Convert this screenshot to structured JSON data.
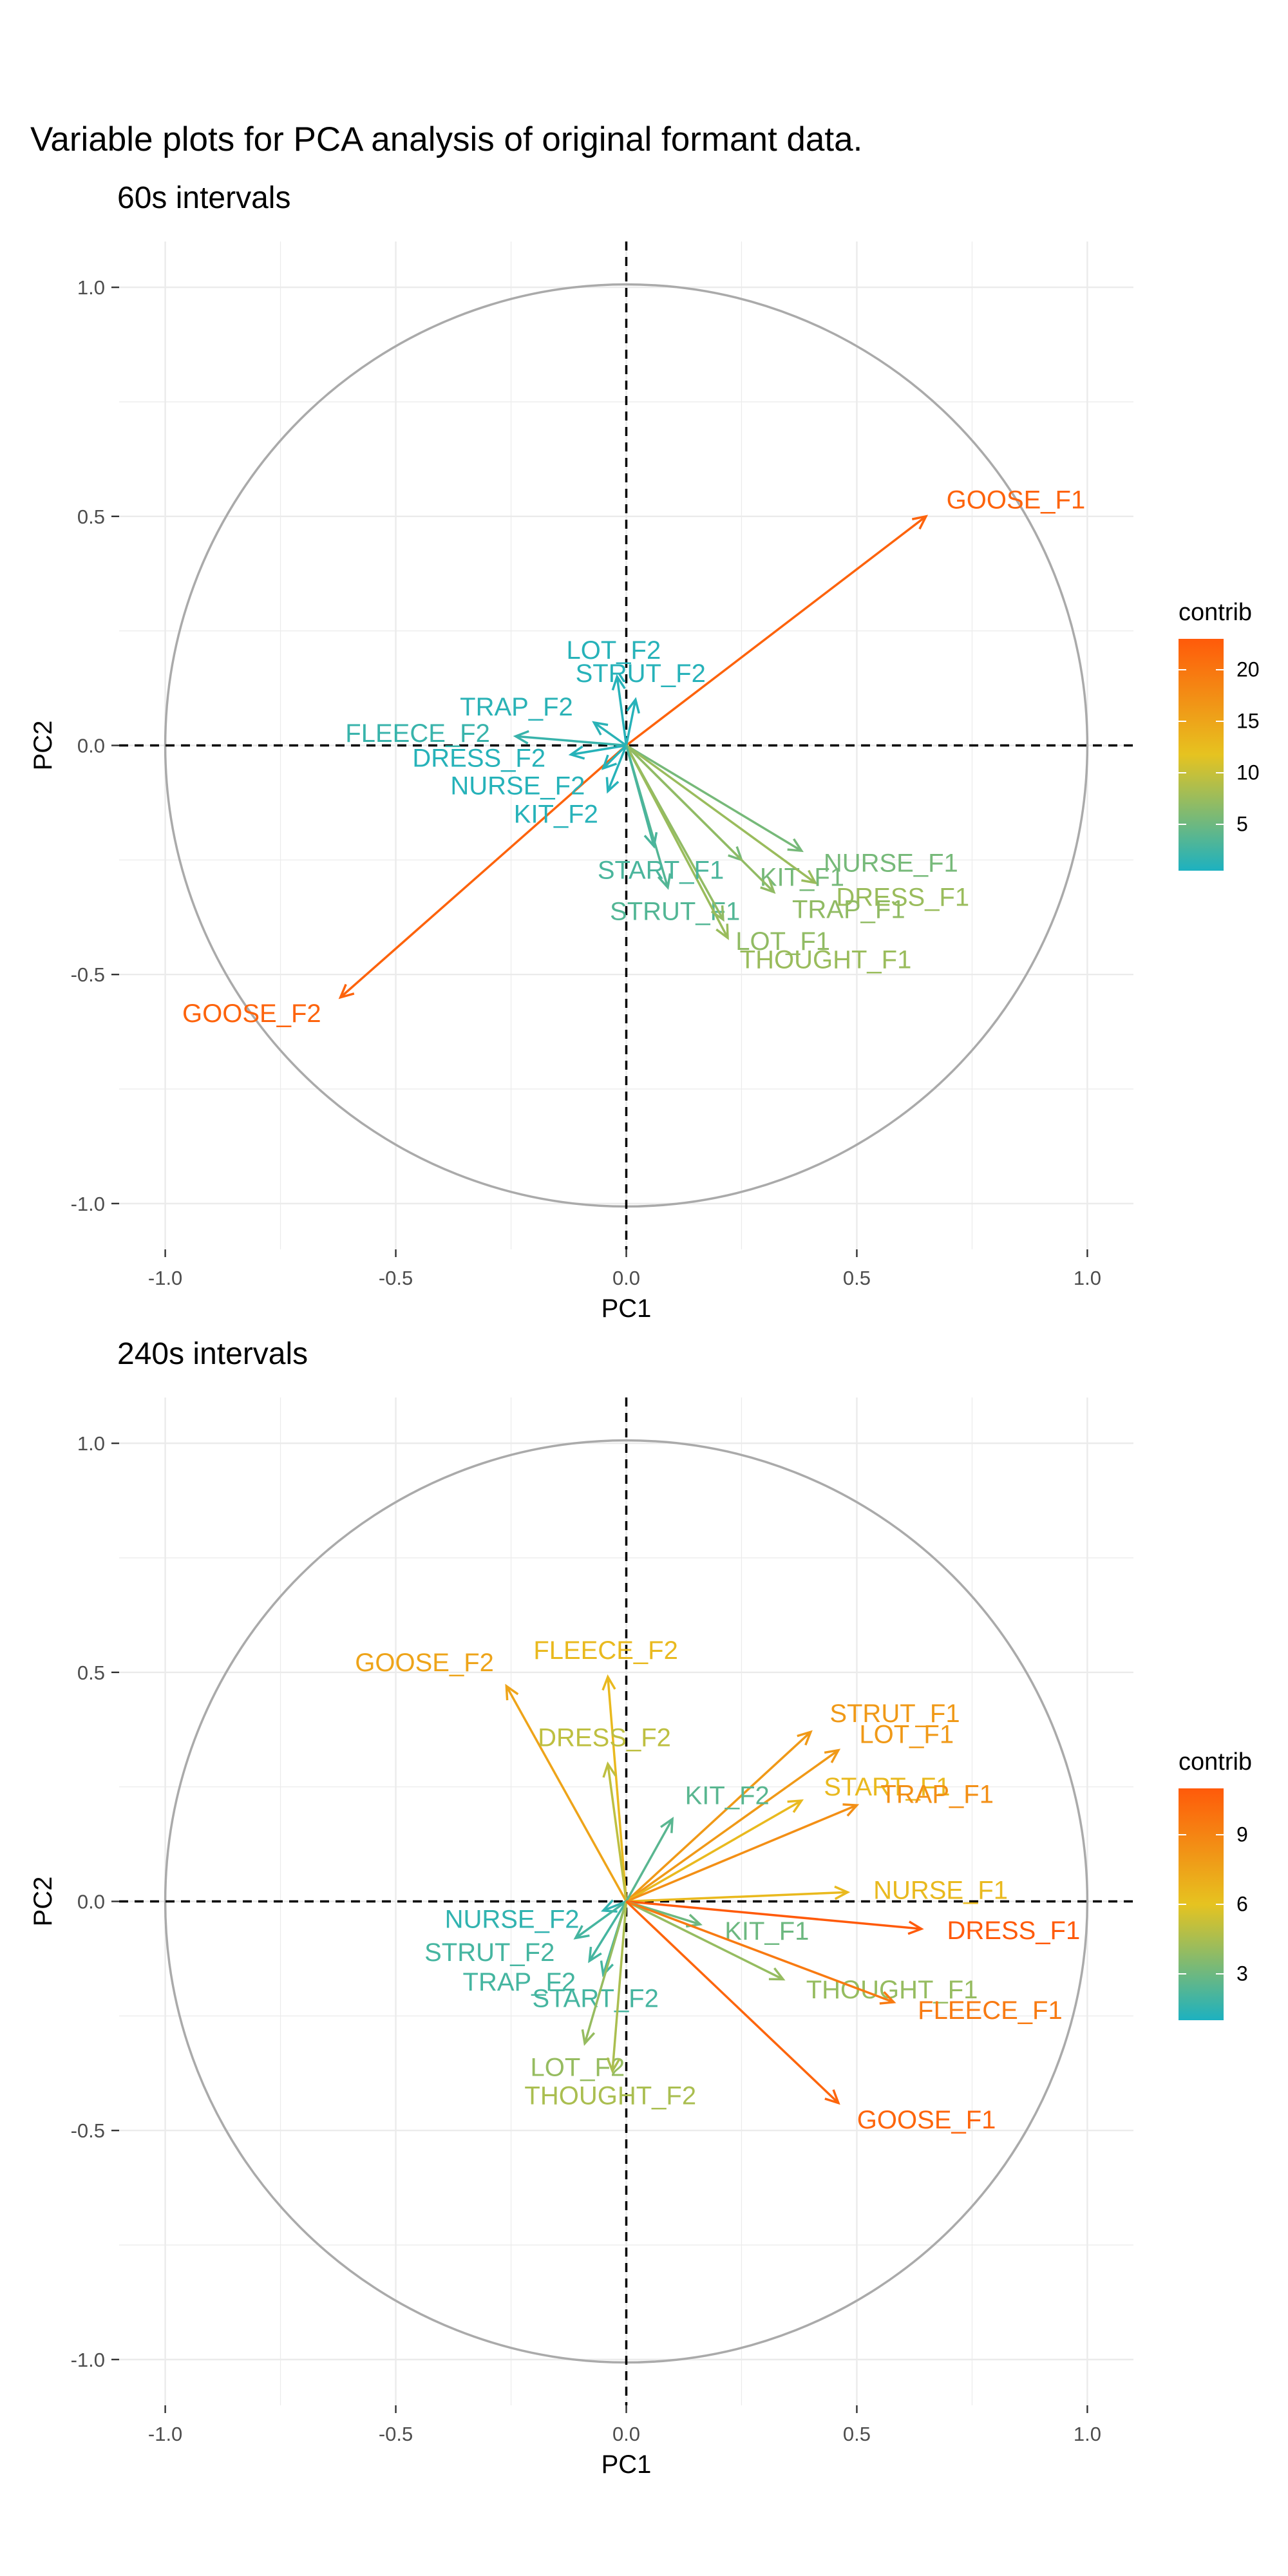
{
  "title": "Variable plots for PCA analysis of original formant data.",
  "chart_data": [
    {
      "type": "scatter",
      "subtitle": "60s intervals",
      "xlabel": "PC1",
      "ylabel": "PC2",
      "xlim": [
        -1.1,
        1.1
      ],
      "ylim": [
        -1.1,
        1.1
      ],
      "x_ticks": [
        "-1.0",
        "-0.5",
        "0.0",
        "0.5",
        "1.0"
      ],
      "y_ticks": [
        "1.0",
        "0.5",
        "0.0",
        "-0.5",
        "-1.0"
      ],
      "grid": true,
      "unit_circle": true,
      "legend": {
        "title": "contrib",
        "placement": "right",
        "ticks": [
          "20",
          "15",
          "10",
          "5"
        ],
        "tick_values": [
          20,
          15,
          10,
          5
        ],
        "range": [
          0.5,
          23
        ],
        "colors": [
          "#1DB1C0",
          "#E6C320",
          "#FF5A0A"
        ]
      },
      "vectors": [
        {
          "label": "GOOSE_F1",
          "x": 0.65,
          "y": 0.5,
          "contrib": 22
        },
        {
          "label": "GOOSE_F2",
          "x": -0.62,
          "y": -0.55,
          "contrib": 22
        },
        {
          "label": "LOT_F2",
          "x": -0.02,
          "y": 0.15,
          "contrib": 1.0
        },
        {
          "label": "STRUT_F2",
          "x": 0.02,
          "y": 0.1,
          "contrib": 1.0
        },
        {
          "label": "TRAP_F2",
          "x": -0.07,
          "y": 0.05,
          "contrib": 1.2
        },
        {
          "label": "FLEECE_F2",
          "x": -0.24,
          "y": 0.02,
          "contrib": 2.0
        },
        {
          "label": "DRESS_F2",
          "x": -0.12,
          "y": -0.02,
          "contrib": 1.0
        },
        {
          "label": "NURSE_F2",
          "x": -0.05,
          "y": -0.05,
          "contrib": 1.0
        },
        {
          "label": "KIT_F2",
          "x": -0.04,
          "y": -0.1,
          "contrib": 1.0
        },
        {
          "label": "NURSE_F1",
          "x": 0.38,
          "y": -0.23,
          "contrib": 5.5
        },
        {
          "label": "KIT_F1",
          "x": 0.25,
          "y": -0.25,
          "contrib": 5.5
        },
        {
          "label": "DRESS_F1",
          "x": 0.41,
          "y": -0.3,
          "contrib": 7.5
        },
        {
          "label": "STRUT_F1",
          "x": 0.09,
          "y": -0.31,
          "contrib": 3.5
        },
        {
          "label": "TRAP_F1",
          "x": 0.32,
          "y": -0.32,
          "contrib": 7.0
        },
        {
          "label": "LOT_F1",
          "x": 0.21,
          "y": -0.38,
          "contrib": 7.0
        },
        {
          "label": "THOUGHT_F1",
          "x": 0.22,
          "y": -0.42,
          "contrib": 7.5
        },
        {
          "label": "START_F1",
          "x": 0.06,
          "y": -0.22,
          "contrib": 3.0
        }
      ]
    },
    {
      "type": "scatter",
      "subtitle": "240s intervals",
      "xlabel": "PC1",
      "ylabel": "PC2",
      "xlim": [
        -1.1,
        1.1
      ],
      "ylim": [
        -1.1,
        1.1
      ],
      "x_ticks": [
        "-1.0",
        "-0.5",
        "0.0",
        "0.5",
        "1.0"
      ],
      "y_ticks": [
        "1.0",
        "0.5",
        "0.0",
        "-0.5",
        "-1.0"
      ],
      "grid": true,
      "unit_circle": true,
      "legend": {
        "title": "contrib",
        "placement": "right",
        "ticks": [
          "9",
          "6",
          "3"
        ],
        "tick_values": [
          9,
          6,
          3
        ],
        "range": [
          1,
          11
        ],
        "colors": [
          "#1DB1C0",
          "#E6C320",
          "#FF5A0A"
        ]
      },
      "vectors": [
        {
          "label": "GOOSE_F2",
          "x": -0.26,
          "y": 0.47,
          "contrib": 7.5
        },
        {
          "label": "FLEECE_F2",
          "x": -0.04,
          "y": 0.49,
          "contrib": 6.5
        },
        {
          "label": "DRESS_F2",
          "x": -0.04,
          "y": 0.3,
          "contrib": 5.0
        },
        {
          "label": "STRUT_F1",
          "x": 0.4,
          "y": 0.37,
          "contrib": 8.0
        },
        {
          "label": "LOT_F1",
          "x": 0.46,
          "y": 0.33,
          "contrib": 8.0
        },
        {
          "label": "START_F1",
          "x": 0.38,
          "y": 0.22,
          "contrib": 6.5
        },
        {
          "label": "TRAP_F1",
          "x": 0.5,
          "y": 0.21,
          "contrib": 8.5
        },
        {
          "label": "KIT_F2",
          "x": 0.1,
          "y": 0.18,
          "contrib": 2.5
        },
        {
          "label": "NURSE_F1",
          "x": 0.48,
          "y": 0.02,
          "contrib": 6.5
        },
        {
          "label": "NURSE_F2",
          "x": -0.05,
          "y": -0.02,
          "contrib": 1.5
        },
        {
          "label": "DRESS_F1",
          "x": 0.64,
          "y": -0.06,
          "contrib": 11
        },
        {
          "label": "KIT_F1",
          "x": 0.16,
          "y": -0.05,
          "contrib": 3.0
        },
        {
          "label": "STRUT_F2",
          "x": -0.11,
          "y": -0.08,
          "contrib": 2.0
        },
        {
          "label": "THOUGHT_F1",
          "x": 0.34,
          "y": -0.17,
          "contrib": 4.0
        },
        {
          "label": "TRAP_F2",
          "x": -0.08,
          "y": -0.13,
          "contrib": 2.0
        },
        {
          "label": "START_F2",
          "x": -0.05,
          "y": -0.16,
          "contrib": 2.0
        },
        {
          "label": "FLEECE_F1",
          "x": 0.58,
          "y": -0.22,
          "contrib": 9.5
        },
        {
          "label": "LOT_F2",
          "x": -0.09,
          "y": -0.31,
          "contrib": 4.0
        },
        {
          "label": "THOUGHT_F2",
          "x": -0.03,
          "y": -0.37,
          "contrib": 4.5
        },
        {
          "label": "GOOSE_F1",
          "x": 0.46,
          "y": -0.44,
          "contrib": 10.5
        }
      ]
    }
  ]
}
